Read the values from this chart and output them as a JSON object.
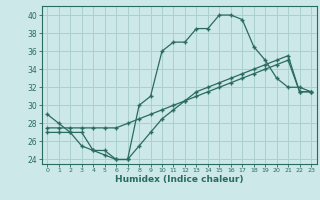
{
  "xlabel": "Humidex (Indice chaleur)",
  "xlim": [
    -0.5,
    23.5
  ],
  "ylim": [
    23.5,
    41
  ],
  "xticks": [
    0,
    1,
    2,
    3,
    4,
    5,
    6,
    7,
    8,
    9,
    10,
    11,
    12,
    13,
    14,
    15,
    16,
    17,
    18,
    19,
    20,
    21,
    22,
    23
  ],
  "yticks": [
    24,
    26,
    28,
    30,
    32,
    34,
    36,
    38,
    40
  ],
  "bg_color": "#cce8e8",
  "grid_color": "#aad0d0",
  "line_color": "#2a6b60",
  "curve1_x": [
    0,
    1,
    2,
    3,
    4,
    5,
    6,
    7,
    8,
    9,
    10,
    11,
    12,
    13,
    14,
    15,
    16,
    17,
    18,
    19,
    20,
    21,
    22,
    23
  ],
  "curve1_y": [
    29,
    28,
    27,
    27,
    25,
    25,
    24,
    24,
    30,
    31,
    36,
    37,
    37,
    38.5,
    38.5,
    40,
    40,
    39.5,
    36.5,
    35,
    33,
    32,
    32,
    31.5
  ],
  "curve2_x": [
    0,
    1,
    2,
    3,
    4,
    5,
    6,
    7,
    8,
    9,
    10,
    11,
    12,
    13,
    14,
    15,
    16,
    17,
    18,
    19,
    20,
    21,
    22,
    23
  ],
  "curve2_y": [
    27.5,
    27.5,
    27.5,
    27.5,
    27.5,
    27.5,
    27.5,
    28.0,
    28.5,
    29.0,
    29.5,
    30.0,
    30.5,
    31.0,
    31.5,
    32.0,
    32.5,
    33.0,
    33.5,
    34.0,
    34.5,
    35.0,
    31.5,
    31.5
  ],
  "curve3_x": [
    0,
    1,
    2,
    3,
    4,
    5,
    6,
    7,
    8,
    9,
    10,
    11,
    12,
    13,
    14,
    15,
    16,
    17,
    18,
    19,
    20,
    21,
    22,
    23
  ],
  "curve3_y": [
    27.0,
    27.0,
    27.0,
    25.5,
    25.0,
    24.5,
    24.0,
    24.0,
    25.5,
    27.0,
    28.5,
    29.5,
    30.5,
    31.5,
    32.0,
    32.5,
    33.0,
    33.5,
    34.0,
    34.5,
    35.0,
    35.5,
    31.5,
    31.5
  ]
}
